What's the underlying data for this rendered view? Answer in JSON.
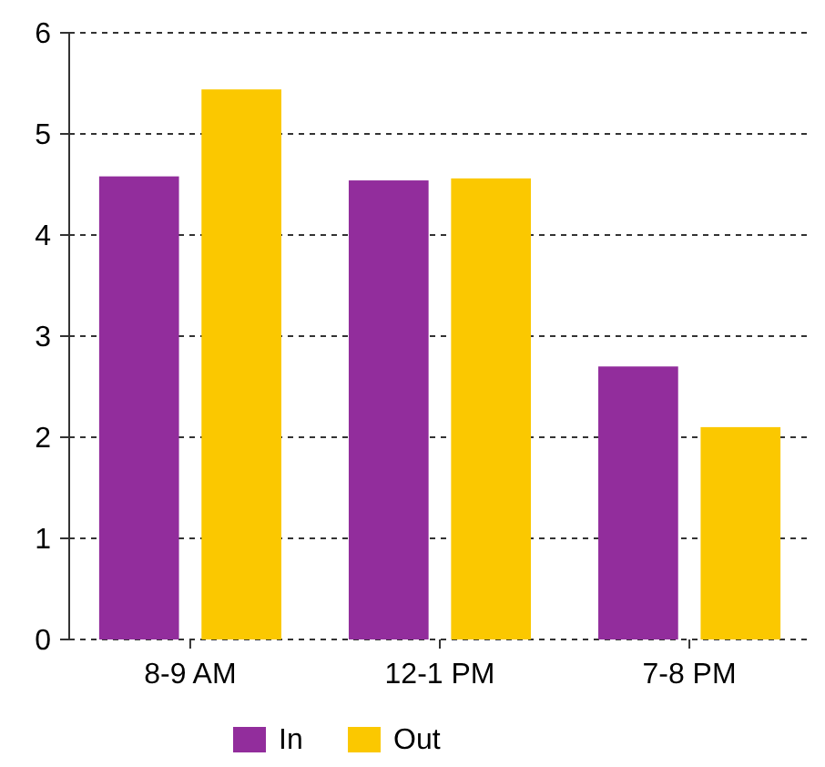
{
  "chart_data": {
    "type": "bar",
    "categories": [
      "8-9 AM",
      "12-1 PM",
      "7-8 PM"
    ],
    "series": [
      {
        "name": "In",
        "color": "#922d9c",
        "values": [
          4.58,
          4.54,
          2.7
        ]
      },
      {
        "name": "Out",
        "color": "#fbc800",
        "values": [
          5.44,
          4.56,
          2.1
        ]
      }
    ],
    "ylim": [
      0,
      6
    ],
    "yticks": [
      0,
      1,
      2,
      3,
      4,
      5,
      6
    ],
    "grid": "y",
    "legend": "bottom"
  }
}
